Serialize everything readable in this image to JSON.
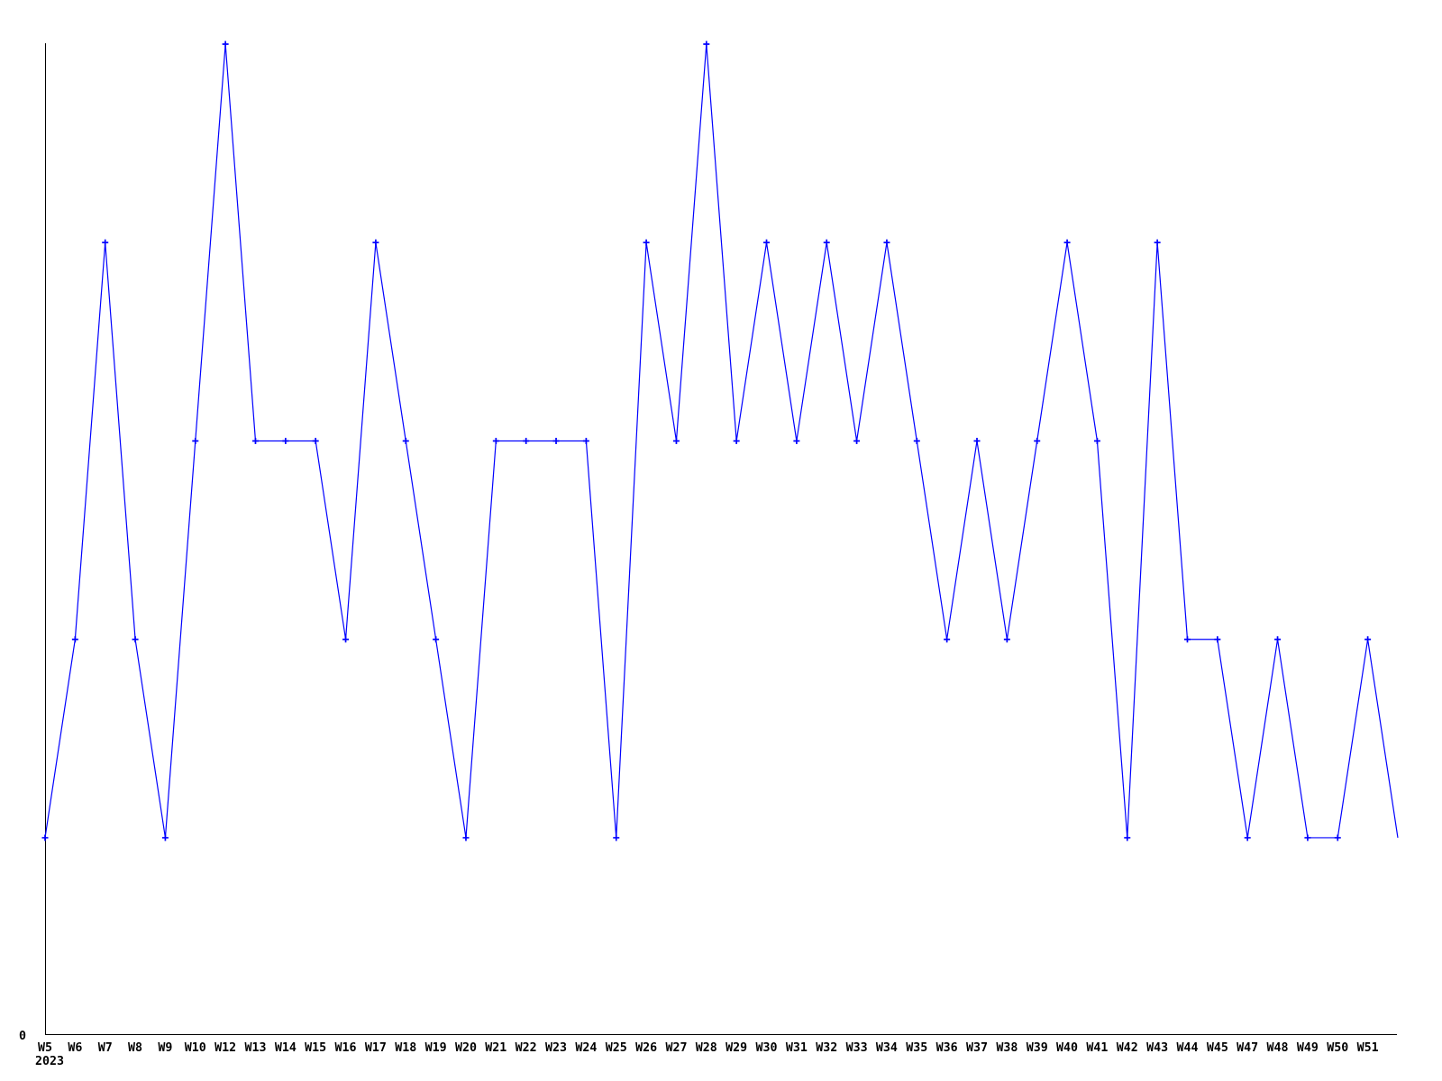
{
  "chart_data": {
    "type": "line",
    "title": "",
    "categories": [
      "W5",
      "W6",
      "W7",
      "W8",
      "W9",
      "W10",
      "W12",
      "W13",
      "W14",
      "W15",
      "W16",
      "W17",
      "W18",
      "W19",
      "W20",
      "W21",
      "W22",
      "W23",
      "W24",
      "W25",
      "W26",
      "W27",
      "W28",
      "W29",
      "W30",
      "W31",
      "W32",
      "W33",
      "W34",
      "W35",
      "W36",
      "W37",
      "W38",
      "W39",
      "W40",
      "W41",
      "W42",
      "W43",
      "W44",
      "W45",
      "W47",
      "W48",
      "W49",
      "W50",
      "W51"
    ],
    "values": [
      1,
      2,
      4,
      2,
      1,
      3,
      5,
      3,
      3,
      3,
      2,
      4,
      3,
      2,
      1,
      3,
      3,
      3,
      3,
      1,
      4,
      3,
      5,
      3,
      4,
      3,
      4,
      3,
      4,
      3,
      2,
      3,
      2,
      3,
      4,
      3,
      1,
      4,
      2,
      2,
      1,
      2,
      1,
      1,
      2
    ],
    "x_axis": {
      "secondary_label": "2023"
    },
    "y_axis": {
      "tick_label": "0",
      "range": [
        0,
        5
      ]
    },
    "line_extension": {
      "value": 1,
      "slots_beyond_last": 1,
      "marker": false
    },
    "legend": "none",
    "grid": "off",
    "style": {
      "line_color": "#0000ff",
      "marker": "plus-icon",
      "axis_color": "#000000",
      "background_color": "#ffffff"
    }
  }
}
